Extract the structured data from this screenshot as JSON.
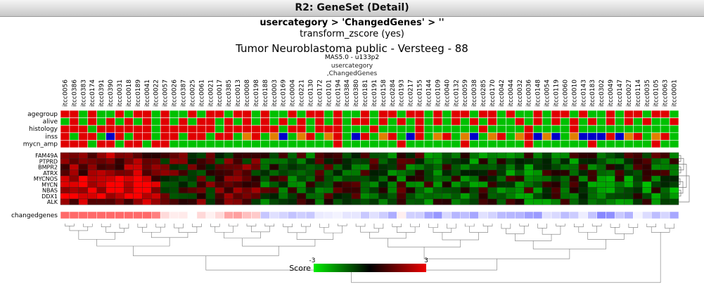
{
  "window": {
    "title": "R2: GeneSet (Detail)"
  },
  "header": {
    "query": "usercategory > 'ChangedGenes' > ''",
    "transform": "transform_zscore (yes)",
    "dataset": "Tumor Neuroblastoma public - Versteeg - 88",
    "chip": "MAS5.0 - u133p2",
    "category_line1": "usercategory",
    "category_line2": ",ChangedGenes"
  },
  "chart_data": {
    "type": "heatmap",
    "samples": [
      "itcc0056",
      "itcc0386",
      "itcc0383",
      "itcc0174",
      "itcc0391",
      "itcc0390",
      "itcc0031",
      "itcc0018",
      "itcc0189",
      "itcc0041",
      "itcc0022",
      "itcc0057",
      "itcc0026",
      "itcc0387",
      "itcc0025",
      "itcc0061",
      "itcc0021",
      "itcc0017",
      "itcc0385",
      "itcc0013",
      "itcc0008",
      "itcc0198",
      "itcc0188",
      "itcc0003",
      "itcc0169",
      "itcc0004",
      "itcc0221",
      "itcc0130",
      "itcc0172",
      "itcc0101",
      "itcc0194",
      "itcc0384",
      "itcc0380",
      "itcc0181",
      "itcc0191",
      "itcc0158",
      "itcc0284",
      "itcc0193",
      "itcc0217",
      "itcc0155",
      "itcc0144",
      "itcc0109",
      "itcc0040",
      "itcc0132",
      "itcc0059",
      "itcc0038",
      "itcc0285",
      "itcc0170",
      "itcc0042",
      "itcc0044",
      "itcc0032",
      "itcc0036",
      "itcc0148",
      "itcc0054",
      "itcc0119",
      "itcc0060",
      "itcc0010",
      "itcc0143",
      "itcc0183",
      "itcc0302",
      "itcc0049",
      "itcc0147",
      "itcc0027",
      "itcc0114",
      "itcc0035",
      "itcc0105",
      "itcc0063",
      "itcc0001"
    ],
    "annotation_rows": [
      "agegroup",
      "alive",
      "histology",
      "inss",
      "mycn_amp"
    ],
    "genes": [
      "FAM49A",
      "PTPRD",
      "BMPR2",
      "ATRX",
      "MYCNOS",
      "MYCN",
      "NBAS",
      "DDX1",
      "ALK"
    ],
    "summary_row": "changedgenes",
    "legend": {
      "title": "Score",
      "min": "-3",
      "max": "3"
    },
    "colors": {
      "annotation_red": "#e00000",
      "annotation_green": "#00c000",
      "annotation_blue": "#0000c8",
      "annotation_orange": "#e08000",
      "low": "#00ee00",
      "mid": "#000000",
      "high": "#ee0000"
    }
  }
}
